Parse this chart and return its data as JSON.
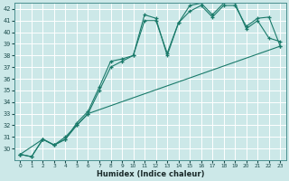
{
  "xlabel": "Humidex (Indice chaleur)",
  "xlim": [
    -0.5,
    23.5
  ],
  "ylim": [
    29.0,
    42.5
  ],
  "yticks": [
    30,
    31,
    32,
    33,
    34,
    35,
    36,
    37,
    38,
    39,
    40,
    41,
    42
  ],
  "xticks": [
    0,
    1,
    2,
    3,
    4,
    5,
    6,
    7,
    8,
    9,
    10,
    11,
    12,
    13,
    14,
    15,
    16,
    17,
    18,
    19,
    20,
    21,
    22,
    23
  ],
  "background_color": "#cce8e8",
  "grid_color": "#b0d8d8",
  "line_color": "#1a7a6a",
  "line1_x": [
    0,
    1,
    2,
    3,
    4,
    5,
    6,
    7,
    8,
    9,
    10,
    11,
    12,
    13,
    14,
    15,
    16,
    17,
    18,
    19,
    20,
    21,
    22,
    23
  ],
  "line1_y": [
    29.5,
    29.3,
    30.8,
    30.3,
    30.8,
    32.2,
    33.2,
    35.3,
    37.5,
    37.7,
    38.0,
    41.5,
    41.2,
    38.0,
    40.8,
    42.3,
    42.5,
    41.5,
    42.5,
    42.5,
    40.3,
    41.0,
    39.5,
    39.2
  ],
  "line2_x": [
    0,
    2,
    3,
    4,
    5,
    6,
    7,
    8,
    9,
    10,
    11,
    12,
    13,
    14,
    15,
    16,
    17,
    18,
    19,
    20,
    21,
    22,
    23
  ],
  "line2_y": [
    29.5,
    30.8,
    30.3,
    30.8,
    32.0,
    33.0,
    35.0,
    37.0,
    37.5,
    38.0,
    41.0,
    41.0,
    38.2,
    40.8,
    41.8,
    42.3,
    41.3,
    42.3,
    42.3,
    40.5,
    41.2,
    41.3,
    38.8
  ],
  "line3_x": [
    0,
    1,
    2,
    3,
    4,
    5,
    6,
    23
  ],
  "line3_y": [
    29.5,
    29.3,
    30.8,
    30.3,
    31.0,
    32.0,
    33.0,
    38.8
  ],
  "marker": "+"
}
